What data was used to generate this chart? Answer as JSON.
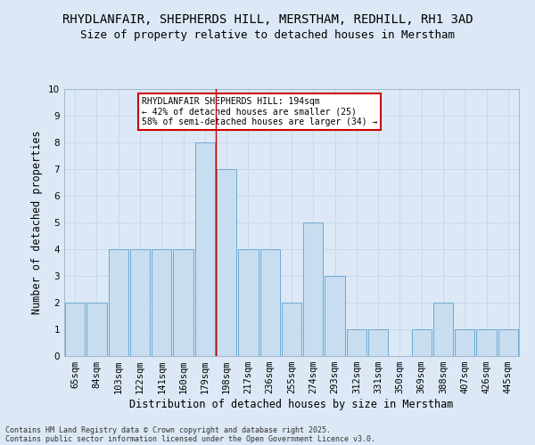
{
  "title": "RHYDLANFAIR, SHEPHERDS HILL, MERSTHAM, REDHILL, RH1 3AD",
  "subtitle": "Size of property relative to detached houses in Merstham",
  "xlabel": "Distribution of detached houses by size in Merstham",
  "ylabel": "Number of detached properties",
  "categories": [
    "65sqm",
    "84sqm",
    "103sqm",
    "122sqm",
    "141sqm",
    "160sqm",
    "179sqm",
    "198sqm",
    "217sqm",
    "236sqm",
    "255sqm",
    "274sqm",
    "293sqm",
    "312sqm",
    "331sqm",
    "350sqm",
    "369sqm",
    "388sqm",
    "407sqm",
    "426sqm",
    "445sqm"
  ],
  "values": [
    2,
    2,
    4,
    4,
    4,
    4,
    8,
    7,
    4,
    4,
    2,
    5,
    3,
    1,
    1,
    0,
    1,
    2,
    1,
    1,
    1
  ],
  "bar_color": "#c9ddf0",
  "bar_edge_color": "#6aaad4",
  "grid_color": "#c8d8e8",
  "background_color": "#dce8f5",
  "annotation_text": "RHYDLANFAIR SHEPHERDS HILL: 194sqm\n← 42% of detached houses are smaller (25)\n58% of semi-detached houses are larger (34) →",
  "annotation_box_color": "#ffffff",
  "annotation_border_color": "#cc0000",
  "red_line_x": 6.5,
  "ylim": [
    0,
    10
  ],
  "yticks": [
    0,
    1,
    2,
    3,
    4,
    5,
    6,
    7,
    8,
    9,
    10
  ],
  "footer_line1": "Contains HM Land Registry data © Crown copyright and database right 2025.",
  "footer_line2": "Contains public sector information licensed under the Open Government Licence v3.0.",
  "title_fontsize": 10,
  "subtitle_fontsize": 9,
  "axis_label_fontsize": 8.5,
  "tick_fontsize": 7.5,
  "annotation_fontsize": 7,
  "footer_fontsize": 6
}
